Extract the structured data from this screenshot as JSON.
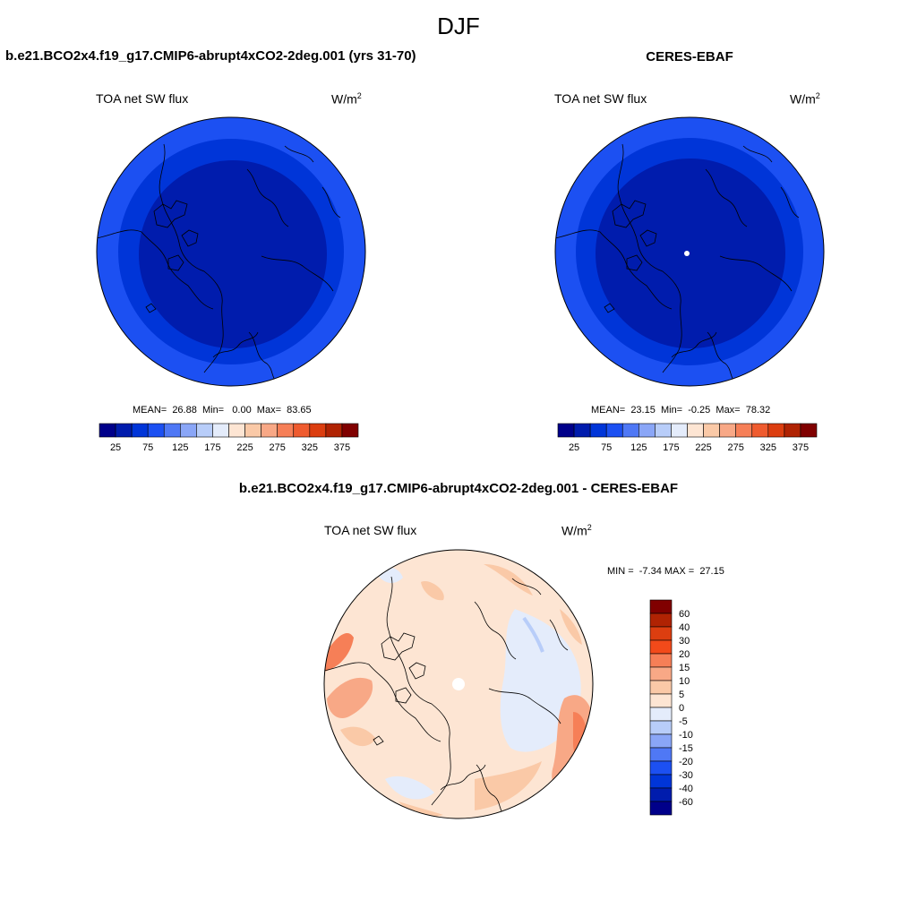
{
  "figure": {
    "title": "DJF",
    "colors": {
      "background": "#ffffff",
      "coastline": "#000000"
    }
  },
  "panels": {
    "left": {
      "case_name": "b.e21.BCO2x4.f19_g17.CMIP6-abrupt4xCO2-2deg.001 (yrs 31-70)",
      "variable": "TOA net SW flux",
      "units_base": "W/m",
      "units_exp": "2",
      "stats": "MEAN=  26.88  Min=   0.00  Max=  83.65"
    },
    "right": {
      "case_name": "CERES-EBAF",
      "variable": "TOA net SW flux",
      "units_base": "W/m",
      "units_exp": "2",
      "stats": "MEAN=  23.15  Min=  -0.25  Max=  78.32"
    },
    "diff": {
      "case_name": "b.e21.BCO2x4.f19_g17.CMIP6-abrupt4xCO2-2deg.001 - CERES-EBAF",
      "variable": "TOA net SW flux",
      "units_base": "W/m",
      "units_exp": "2",
      "stats": "MIN =  -7.34 MAX =  27.15"
    }
  },
  "colorbar_horizontal": {
    "labels": [
      "25",
      "75",
      "125",
      "175",
      "225",
      "275",
      "325",
      "375"
    ],
    "colors": [
      "#00008a",
      "#001cad",
      "#0035d8",
      "#1c50f2",
      "#4f78f5",
      "#8aa6f7",
      "#b8cdf9",
      "#e4ecfb",
      "#fde5d3",
      "#fac9a7",
      "#f8a886",
      "#f67f57",
      "#ef5b2f",
      "#dc3e10",
      "#b02303",
      "#800000"
    ]
  },
  "colorbar_vertical": {
    "labels": [
      "60",
      "40",
      "30",
      "20",
      "15",
      "10",
      "5",
      "0",
      "-5",
      "-10",
      "-15",
      "-20",
      "-30",
      "-40",
      "-60"
    ],
    "colors": [
      "#800000",
      "#b02303",
      "#dc3e10",
      "#f24a1a",
      "#f67f57",
      "#f8a886",
      "#fac9a7",
      "#fde5d3",
      "#e4ecfb",
      "#b8cdf9",
      "#8aa6f7",
      "#4f78f5",
      "#1c50f2",
      "#0035d8",
      "#001cad",
      "#00008a"
    ]
  }
}
